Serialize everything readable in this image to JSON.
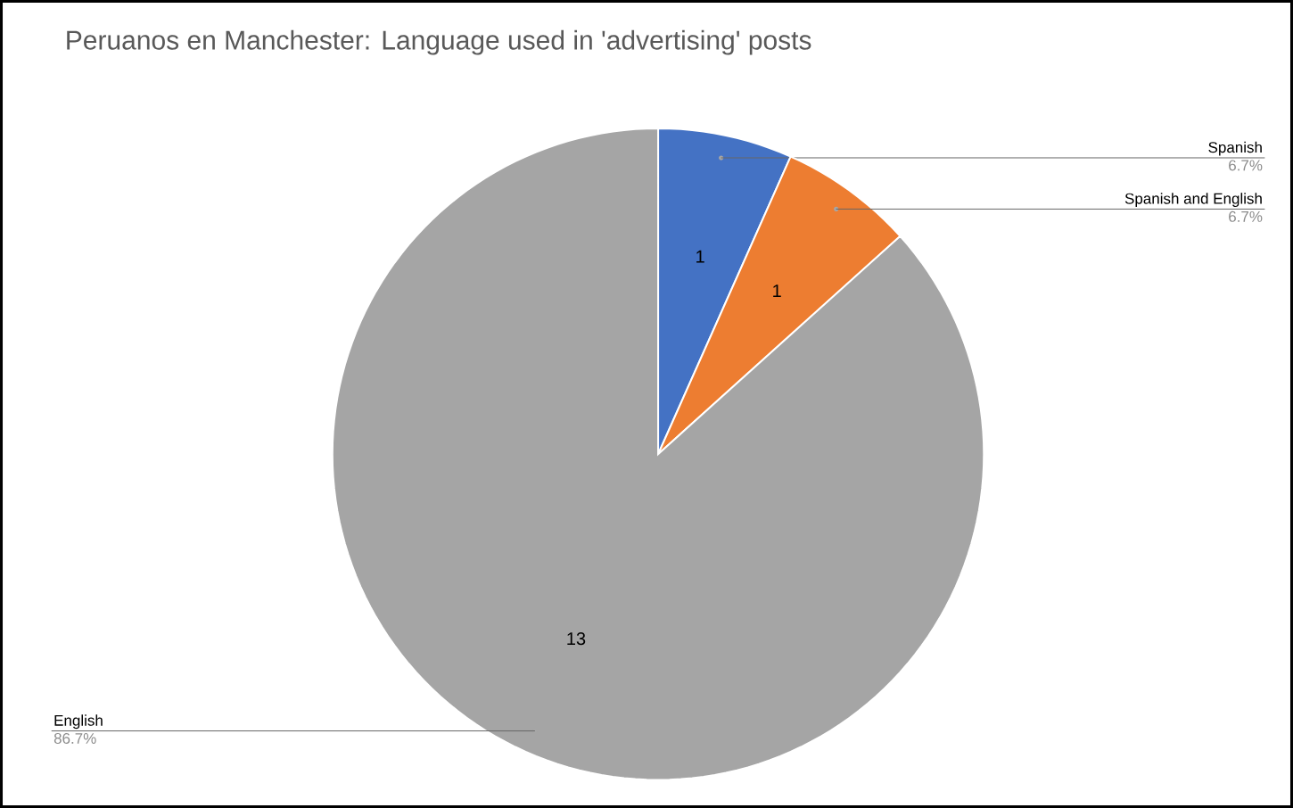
{
  "chart_data": {
    "type": "pie",
    "title": "Peruanos en Manchester: Language used in 'advertising' posts",
    "categories": [
      "Spanish",
      "Spanish and English",
      "English"
    ],
    "values": [
      1,
      1,
      13
    ],
    "colors": [
      "#4472c4",
      "#ed7d31",
      "#a5a5a5"
    ],
    "annotations": [
      "6.7%",
      "6.7%",
      "86.7%"
    ],
    "data_labels": true
  }
}
